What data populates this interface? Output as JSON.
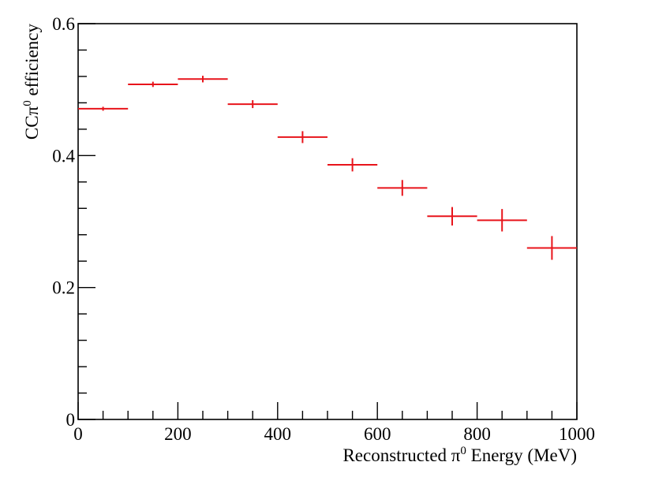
{
  "chart_data": {
    "type": "scatter",
    "title": "",
    "xlabel": {
      "pre": "Reconstructed π",
      "sup": "0",
      "post": " Energy (MeV)"
    },
    "ylabel": {
      "pre": "CCπ",
      "sup": "0",
      "post": " efficiency"
    },
    "xlim": [
      0,
      1000
    ],
    "ylim": [
      0,
      0.6
    ],
    "x_ticks": [
      0,
      200,
      400,
      600,
      800,
      1000
    ],
    "y_ticks": [
      0,
      0.2,
      0.4,
      0.6
    ],
    "x_tick_labels": [
      "0",
      "200",
      "400",
      "600",
      "800",
      "1000"
    ],
    "y_tick_labels": [
      "0",
      "0.2",
      "0.4",
      "0.6"
    ],
    "grid": false,
    "marker_color": "#e8141b",
    "points": [
      {
        "x": 50,
        "xerr": 50,
        "y": 0.471,
        "yerr": 0.003
      },
      {
        "x": 150,
        "xerr": 50,
        "y": 0.508,
        "yerr": 0.004
      },
      {
        "x": 250,
        "xerr": 50,
        "y": 0.516,
        "yerr": 0.005
      },
      {
        "x": 350,
        "xerr": 50,
        "y": 0.478,
        "yerr": 0.006
      },
      {
        "x": 450,
        "xerr": 50,
        "y": 0.428,
        "yerr": 0.009
      },
      {
        "x": 550,
        "xerr": 50,
        "y": 0.386,
        "yerr": 0.01
      },
      {
        "x": 650,
        "xerr": 50,
        "y": 0.351,
        "yerr": 0.012
      },
      {
        "x": 750,
        "xerr": 50,
        "y": 0.308,
        "yerr": 0.014
      },
      {
        "x": 850,
        "xerr": 50,
        "y": 0.302,
        "yerr": 0.017
      },
      {
        "x": 950,
        "xerr": 50,
        "y": 0.26,
        "yerr": 0.018
      }
    ]
  }
}
